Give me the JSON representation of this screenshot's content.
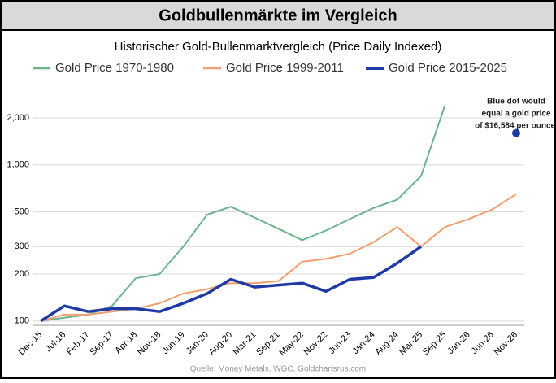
{
  "chart_data": {
    "type": "line",
    "title": "Goldbullenmärkte im Vergleich",
    "subtitle": "Historischer Gold-Bullenmarktvergleich (Price Daily Indexed)",
    "source": "Quelle: Money Metals, WGC, Goldchartsrus.com",
    "categories": [
      "Dec-15",
      "Jul-16",
      "Feb-17",
      "Sep-17",
      "Apr-18",
      "Nov-18",
      "Jun-19",
      "Jan-20",
      "Aug-20",
      "Mar-21",
      "Sep-21",
      "May-22",
      "Nov-22",
      "Jun-23",
      "Jan-24",
      "Aug-24",
      "Mar-25",
      "Sep-25",
      "Jan-26",
      "Jun-26",
      "Nov-26"
    ],
    "series": [
      {
        "name": "Gold Price 1970-1980",
        "color": "#6db38d",
        "values": [
          100,
          105,
          110,
          125,
          188,
          200,
          300,
          480,
          540,
          460,
          390,
          330,
          380,
          450,
          530,
          600,
          850,
          2400,
          null,
          null,
          null
        ]
      },
      {
        "name": "Gold Price 1999-2011",
        "color": "#f0a070",
        "values": [
          100,
          110,
          110,
          115,
          120,
          130,
          150,
          160,
          175,
          175,
          180,
          240,
          250,
          270,
          320,
          400,
          300,
          400,
          450,
          520,
          650
        ]
      },
      {
        "name": "Gold Price 2015-2025",
        "color": "#1f3aa5",
        "values": [
          100,
          125,
          115,
          120,
          120,
          115,
          130,
          150,
          185,
          165,
          170,
          175,
          155,
          185,
          190,
          235,
          300,
          null,
          null,
          null,
          null
        ]
      }
    ],
    "marker": {
      "value": 1600,
      "color": "#1f3aa5"
    },
    "annotation": [
      "Blue dot would",
      "equal a gold price",
      "of $16,584 per ounce."
    ],
    "log_scale": true,
    "ylim": [
      94,
      2700
    ],
    "yticks": [
      100,
      200,
      300,
      500,
      {
        "value": 1000,
        "label": "1,000"
      },
      {
        "value": 2000,
        "label": "2,000"
      }
    ],
    "grid": true,
    "legend": "top"
  }
}
